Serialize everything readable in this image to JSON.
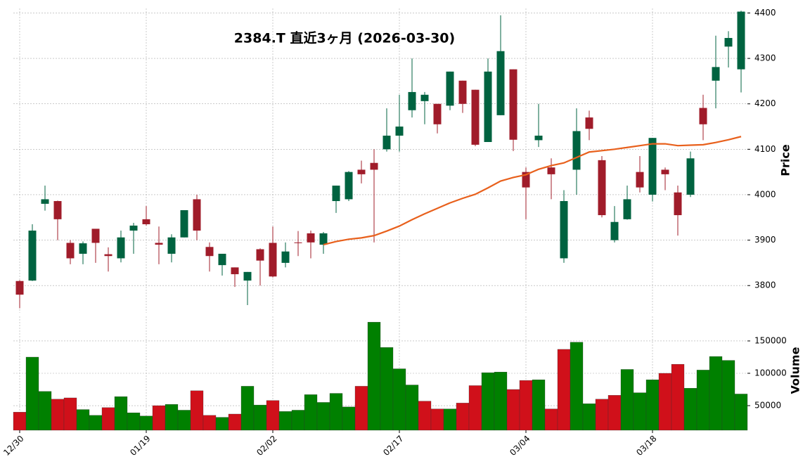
{
  "chart_data": {
    "type": "candlestick",
    "title": "2384.T  直近3ヶ月  (2026-03-30)",
    "categories": [
      "12/30",
      null,
      null,
      null,
      null,
      null,
      null,
      null,
      null,
      null,
      "01/19",
      null,
      null,
      null,
      null,
      null,
      null,
      null,
      null,
      null,
      "02/02",
      null,
      null,
      null,
      null,
      null,
      null,
      null,
      null,
      null,
      "02/17",
      null,
      null,
      null,
      null,
      null,
      null,
      null,
      null,
      null,
      "03/04",
      null,
      null,
      null,
      null,
      null,
      null,
      null,
      null,
      null,
      "03/18",
      null,
      null,
      null,
      null,
      null,
      null,
      null
    ],
    "open": [
      3810,
      3811,
      3980,
      3986,
      3894,
      3870,
      3925,
      3869,
      3860,
      3921,
      3946,
      3894,
      3870,
      3906,
      3990,
      3885,
      3845,
      3840,
      3811,
      3880,
      3894,
      3850,
      3895,
      3915,
      3890,
      3986,
      3990,
      4055,
      4070,
      4100,
      4130,
      4186,
      4206,
      4200,
      4196,
      4251,
      4231,
      4116,
      4175,
      4276,
      4050,
      4120,
      4060,
      3860,
      4055,
      4170,
      4076,
      3900,
      3946,
      4050,
      4000,
      4055,
      4005,
      4000,
      4191,
      4251,
      4326,
      4276
    ],
    "high": [
      3812,
      3935,
      4020,
      3987,
      3900,
      3897,
      3925,
      3884,
      3921,
      3938,
      3975,
      3930,
      3913,
      3966,
      4000,
      3895,
      3870,
      3840,
      3830,
      3882,
      3930,
      3895,
      3920,
      3921,
      3918,
      4020,
      4052,
      4075,
      4100,
      4190,
      4220,
      4300,
      4226,
      4200,
      4271,
      4251,
      4231,
      4300,
      4395,
      4276,
      4060,
      4200,
      4080,
      4010,
      4190,
      4185,
      4085,
      3975,
      4020,
      4085,
      4125,
      4060,
      4020,
      4095,
      4220,
      4350,
      4360,
      4405
    ],
    "low": [
      3750,
      3810,
      3965,
      3900,
      3847,
      3847,
      3850,
      3831,
      3851,
      3870,
      3932,
      3847,
      3851,
      3906,
      3900,
      3831,
      3822,
      3797,
      3757,
      3800,
      3818,
      3840,
      3865,
      3860,
      3870,
      3960,
      3986,
      4025,
      3895,
      4095,
      4095,
      4170,
      4155,
      4135,
      4186,
      4180,
      4107,
      4116,
      4175,
      4096,
      3946,
      4105,
      3990,
      3850,
      4000,
      4120,
      3950,
      3895,
      3945,
      4005,
      3985,
      4010,
      3910,
      3995,
      4120,
      4190,
      4280,
      4225
    ],
    "close": [
      3780,
      3921,
      3990,
      3946,
      3860,
      3893,
      3894,
      3865,
      3906,
      3932,
      3935,
      3890,
      3906,
      3966,
      3921,
      3865,
      3870,
      3825,
      3830,
      3855,
      3820,
      3875,
      3894,
      3895,
      3915,
      4020,
      4050,
      4045,
      4055,
      4130,
      4150,
      4226,
      4220,
      4155,
      4271,
      4200,
      4110,
      4271,
      4316,
      4121,
      4016,
      4130,
      4045,
      3986,
      4140,
      4145,
      3955,
      3940,
      3990,
      4016,
      4125,
      4045,
      3955,
      4080,
      4155,
      4281,
      4345,
      4403
    ],
    "up_color": "#006340",
    "down_color": "#a01c2a",
    "ma": {
      "color": "#e8601c",
      "values": [
        null,
        null,
        null,
        null,
        null,
        null,
        null,
        null,
        null,
        null,
        null,
        null,
        null,
        null,
        null,
        null,
        null,
        null,
        null,
        null,
        null,
        null,
        null,
        null,
        3890,
        3897,
        3902,
        3905,
        3910,
        3920,
        3931,
        3945,
        3958,
        3970,
        3982,
        3992,
        4001,
        4015,
        4030,
        4038,
        4044,
        4056,
        4064,
        4070,
        4082,
        4094,
        4097,
        4100,
        4104,
        4108,
        4112,
        4112,
        4108,
        4109,
        4110,
        4115,
        4121,
        4128
      ]
    },
    "volume": [
      40000,
      125000,
      72000,
      60000,
      62000,
      44000,
      35000,
      47000,
      64000,
      39000,
      34000,
      50000,
      52000,
      43000,
      73000,
      35000,
      32000,
      37000,
      80000,
      51000,
      58000,
      41000,
      43000,
      67000,
      55000,
      69000,
      48000,
      80000,
      179000,
      140000,
      107000,
      82000,
      57000,
      45000,
      45000,
      54000,
      81000,
      101000,
      102000,
      75000,
      89000,
      90000,
      45000,
      137000,
      148000,
      53000,
      60000,
      66000,
      106000,
      70000,
      90000,
      100000,
      114000,
      77000,
      105000,
      126000,
      120000,
      68000
    ],
    "volume_up_color": "#008000",
    "volume_down_color": "#d0101a",
    "ylabel": "Price",
    "ylim": [
      3740,
      4410
    ],
    "yticks": [
      3800,
      3900,
      4000,
      4100,
      4200,
      4300,
      4400
    ],
    "volume_ylabel": "Volume",
    "volume_ylim": [
      12000,
      188000
    ],
    "volume_yticks": [
      50000,
      100000,
      150000
    ],
    "grid": true
  }
}
